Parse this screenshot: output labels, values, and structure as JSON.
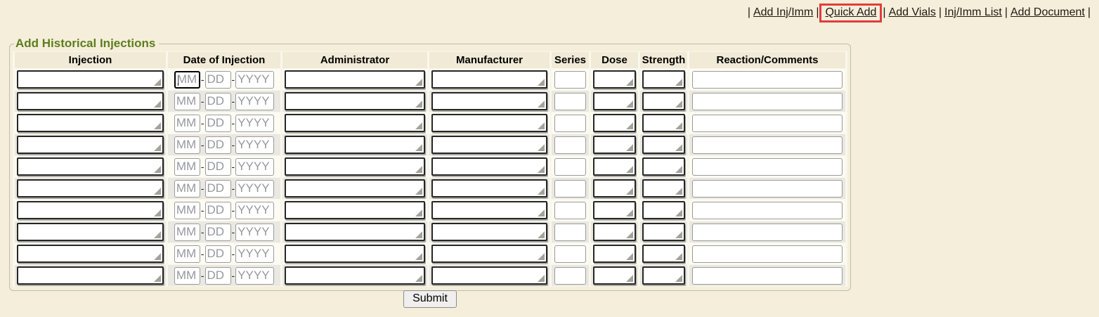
{
  "colors": {
    "page_bg": "#f4eedb",
    "header_cell_bg": "#f0ead6",
    "row_odd_bg": "#fcfbf4",
    "row_even_bg": "#e9e8e2",
    "legend_green": "#5e7d1b",
    "link_color": "#221812",
    "highlight_red": "#e23c3c",
    "dark_input_border": "#262626",
    "plain_input_border": "#9b9b98"
  },
  "nav": {
    "separator": "|",
    "items": [
      {
        "label": "Add Inj/Imm",
        "highlighted": false
      },
      {
        "label": "Quick Add",
        "highlighted": true
      },
      {
        "label": "Add Vials",
        "highlighted": false
      },
      {
        "label": "Inj/Imm List",
        "highlighted": false
      },
      {
        "label": "Add Document",
        "highlighted": false
      }
    ]
  },
  "form": {
    "legend": "Add Historical Injections",
    "columns": [
      "Injection",
      "Date of Injection",
      "Administrator",
      "Manufacturer",
      "Series",
      "Dose",
      "Strength",
      "Reaction/Comments"
    ],
    "row_count": 10,
    "date": {
      "month_placeholder": "MM",
      "day_placeholder": "DD",
      "year_placeholder": "YYYY",
      "separator": "-"
    },
    "submit_label": "Submit"
  }
}
